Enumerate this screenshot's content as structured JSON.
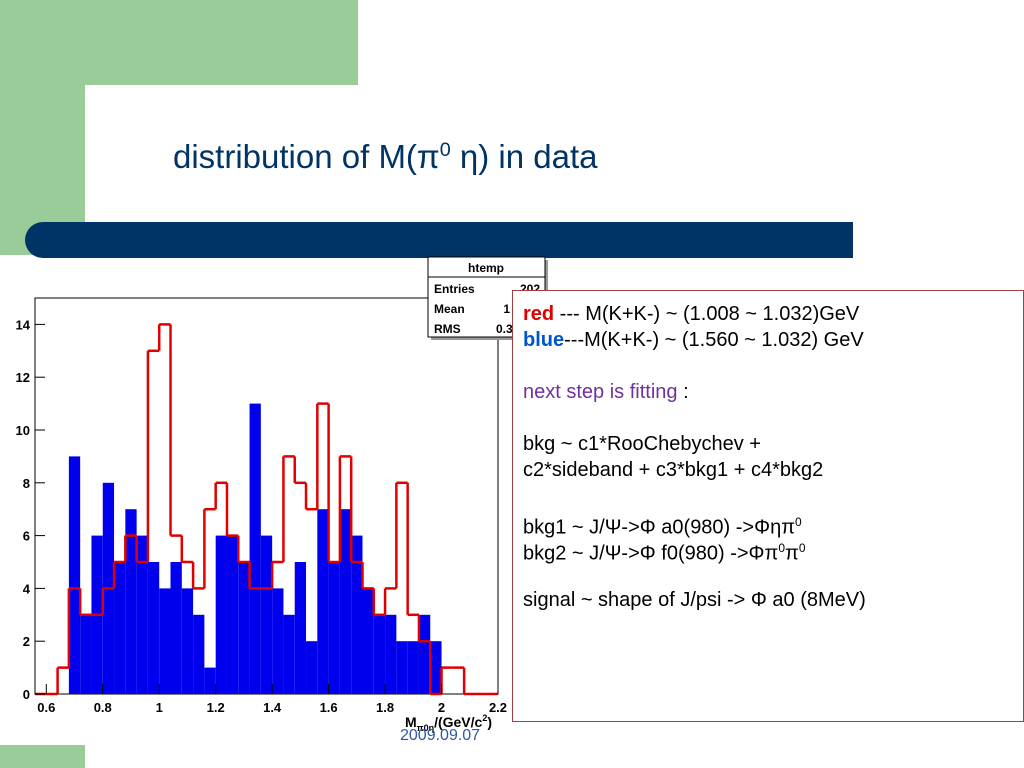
{
  "slide": {
    "title": [
      "distribution of M(π",
      "0",
      " η) in data"
    ],
    "date": "2009.09.07",
    "notes": [
      [
        "red",
        " --- M(K+K-) ~ (1.008 ~ 1.032)GeV"
      ],
      [
        "blue",
        "---M(K+K-) ~ (1.560 ~ 1.032) GeV"
      ],
      [
        "next  step is fitting",
        " :"
      ],
      "bkg ~ c1*RooChebychev +",
      "c2*sideband + c3*bkg1 + c4*bkg2",
      [
        "bkg1 ~ J/Ψ->Φ a0(980) ->Φηπ",
        "0"
      ],
      [
        "bkg2 ~ J/Ψ->Φ f0(980) ->Φπ",
        "0",
        "π",
        "0"
      ],
      "signal ~ shape of J/psi -> Φ a0 (8MeV)"
    ],
    "stats": {
      "name": "htemp",
      "rows": [
        [
          "Entries",
          "202"
        ],
        [
          "Mean",
          "1"
        ],
        [
          "RMS",
          "0.3"
        ]
      ]
    }
  },
  "chart_data": {
    "type": "histogram",
    "x_label": [
      "M",
      "π0η",
      "/(GeV/c",
      "2",
      ")"
    ],
    "bins": [
      0.56,
      0.6,
      0.64,
      0.68,
      0.72,
      0.76,
      0.8,
      0.84,
      0.88,
      0.92,
      0.96,
      1,
      1.04,
      1.08,
      1.12,
      1.16,
      1.2,
      1.24,
      1.28,
      1.32,
      1.36,
      1.4,
      1.44,
      1.48,
      1.52,
      1.56,
      1.6,
      1.64,
      1.68,
      1.72,
      1.76,
      1.8,
      1.84,
      1.88,
      1.92,
      1.96,
      2,
      2.04,
      2.08,
      2.12,
      2.16,
      2.2
    ],
    "series": [
      {
        "name": "red",
        "color": "#e00000",
        "style": "outline",
        "values": [
          0,
          0,
          1,
          4,
          3,
          3,
          4,
          5,
          6,
          5,
          13,
          14,
          6,
          5,
          4,
          7,
          8,
          6,
          5,
          4,
          4,
          5,
          9,
          8,
          7,
          11,
          5,
          9,
          5,
          4,
          3,
          4,
          8,
          3,
          2,
          0,
          1,
          1,
          0,
          0,
          0
        ]
      },
      {
        "name": "blue",
        "color": "#0000ee",
        "style": "filled",
        "values": [
          0,
          0,
          0,
          9,
          3,
          6,
          8,
          5,
          7,
          6,
          5,
          4,
          5,
          4,
          3,
          1,
          6,
          6,
          5,
          11,
          6,
          4,
          3,
          5,
          2,
          7,
          5,
          7,
          6,
          4,
          3,
          3,
          2,
          2,
          3,
          2,
          0,
          0,
          0,
          0,
          0
        ]
      }
    ],
    "xlim": [
      0.56,
      2.2
    ],
    "ylim": [
      0,
      15
    ],
    "xticks": [
      0.6,
      0.8,
      1,
      1.2,
      1.4,
      1.6,
      1.8,
      2,
      2.2
    ],
    "yticks": [
      0,
      2,
      4,
      6,
      8,
      10,
      12,
      14
    ]
  }
}
